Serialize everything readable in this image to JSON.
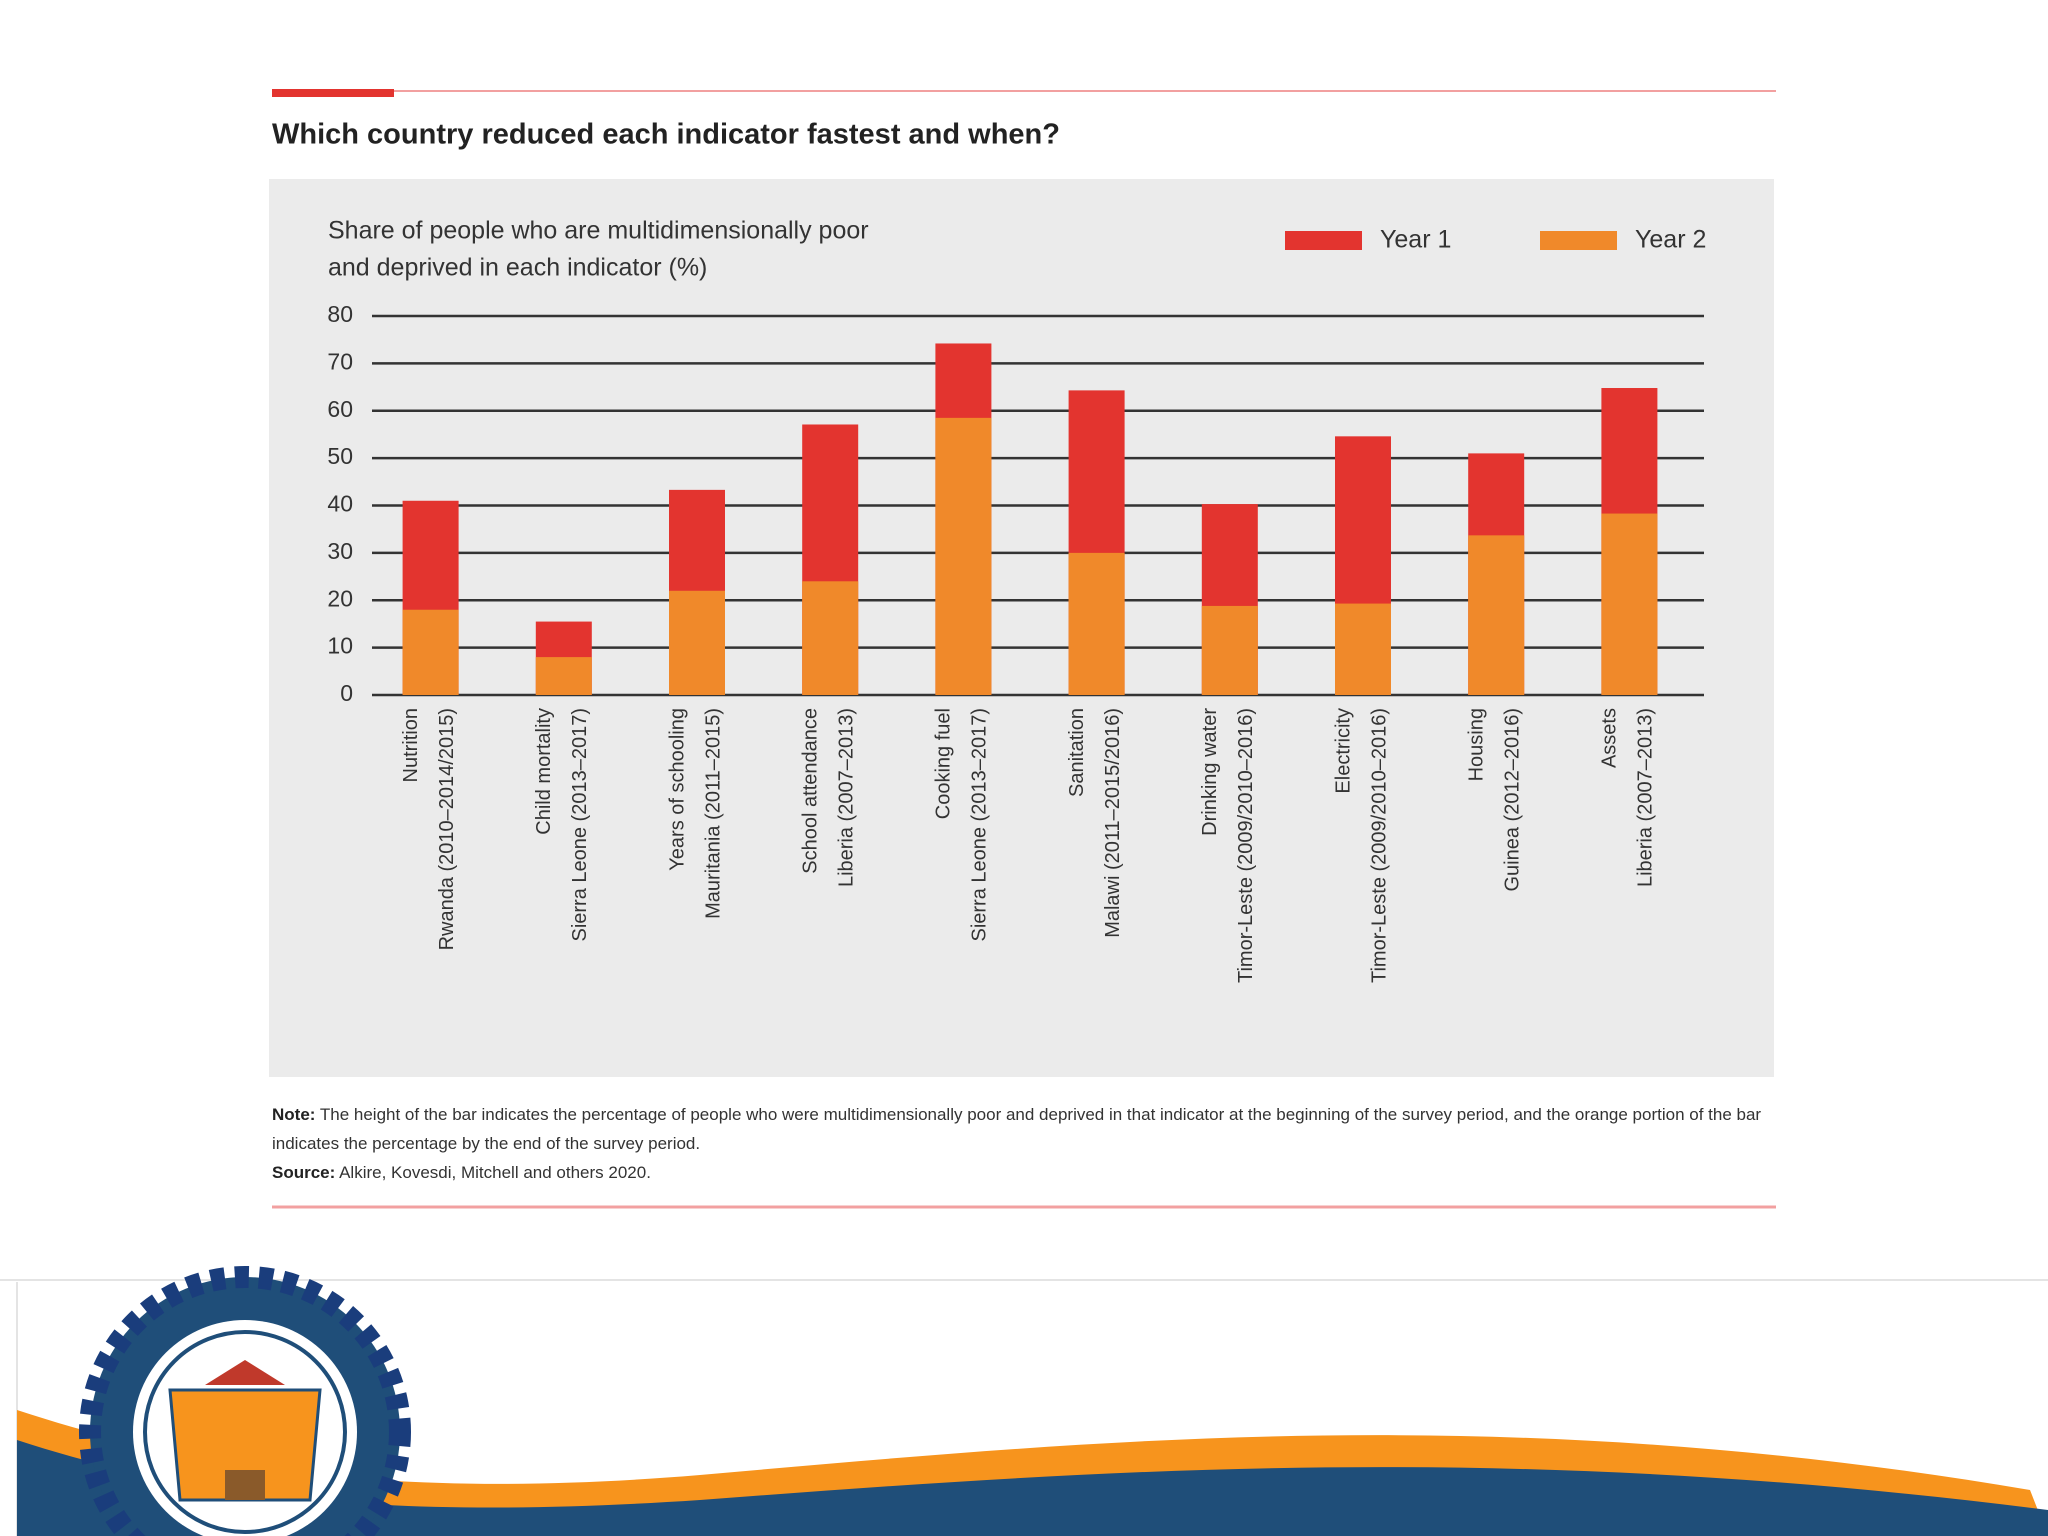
{
  "heading": "Which country reduced each indicator fastest and when?",
  "chart_data": {
    "type": "bar",
    "y_label": [
      "Share of people who are multidimensionally poor",
      "and deprived in each indicator (%)"
    ],
    "categories": [
      [
        "Nutrition",
        "Rwanda (2010–2014/2015)"
      ],
      [
        "Child mortality",
        "Sierra Leone (2013–2017)"
      ],
      [
        "Years of schooling",
        "Mauritania (2011–2015)"
      ],
      [
        "School attendance",
        "Liberia (2007–2013)"
      ],
      [
        "Cooking fuel",
        "Sierra Leone (2013–2017)"
      ],
      [
        "Sanitation",
        "Malawi (2011–2015/2016)"
      ],
      [
        "Drinking water",
        "Timor-Leste (2009/2010–2016)"
      ],
      [
        "Electricity",
        "Timor-Leste (2009/2010–2016)"
      ],
      [
        "Housing",
        "Guinea (2012–2016)"
      ],
      [
        "Assets",
        "Liberia (2007–2013)"
      ]
    ],
    "series": [
      {
        "name": "Year 1",
        "color": "#e3342f",
        "values": [
          41,
          15.5,
          43.3,
          57.1,
          74.2,
          64.3,
          40.3,
          54.6,
          51,
          64.8
        ]
      },
      {
        "name": "Year 2",
        "color": "#f0892a",
        "values": [
          18,
          8,
          22,
          24,
          58.5,
          30,
          18.8,
          19.3,
          33.7,
          38.3
        ]
      }
    ],
    "ylim": [
      0,
      80
    ],
    "yticks": [
      0,
      10,
      20,
      30,
      40,
      50,
      60,
      70,
      80
    ],
    "grid": true,
    "legend": "top-right"
  },
  "note": {
    "label": "Note:",
    "text": "The height of the bar indicates the percentage of people who were multidimensionally poor and deprived in that indicator at the beginning of the survey period, and the orange portion of the bar indicates the percentage by the end of the survey period."
  },
  "source": {
    "label": "Source:",
    "text": "Alkire, Kovesdi, Mitchell and others 2020."
  }
}
